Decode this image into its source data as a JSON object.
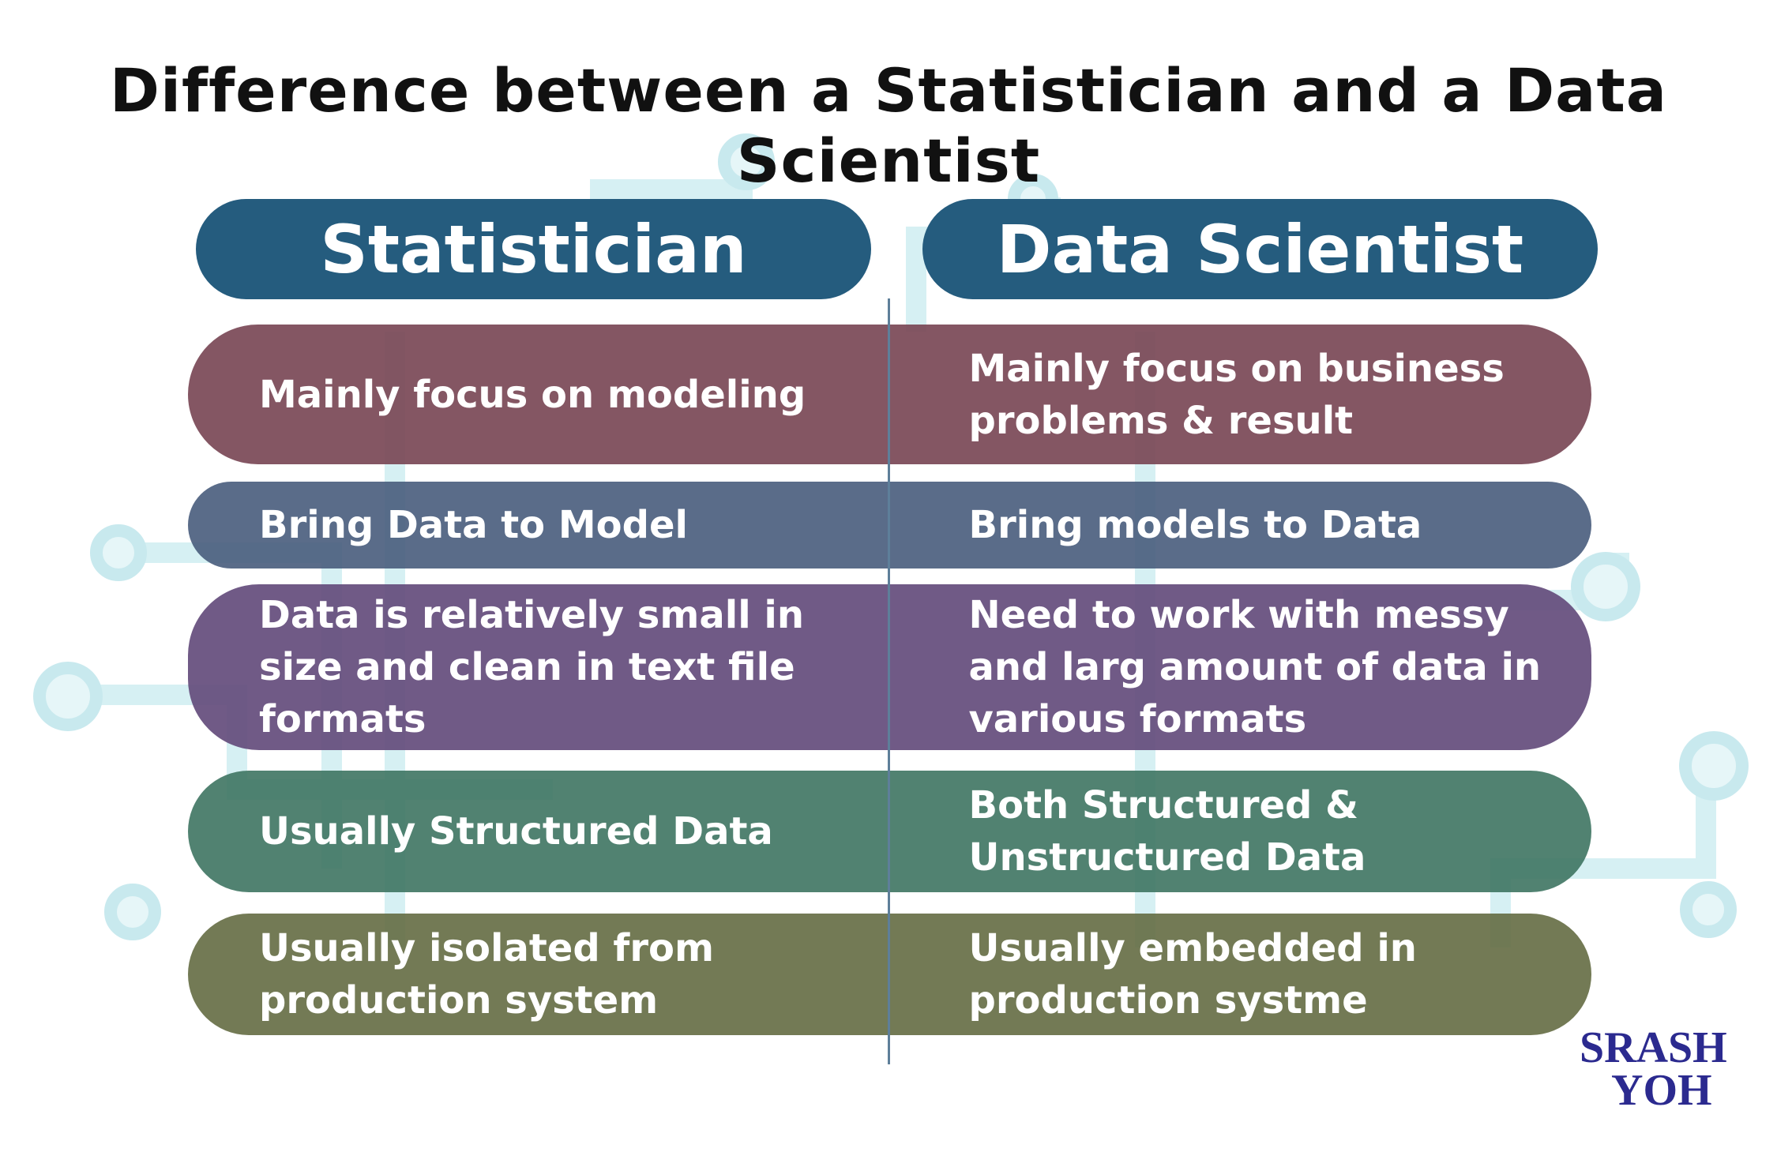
{
  "title": "Difference between a Statistician and a Data Scientist",
  "columns": [
    "Statistician",
    "Data Scientist"
  ],
  "rows": [
    [
      "Mainly focus on modeling",
      "Mainly focus on business problems & result"
    ],
    [
      "Bring Data to Model",
      "Bring models to Data"
    ],
    [
      "Data is relatively small in size and clean in text file formats",
      "Need to work with messy and larg amount of data in various formats"
    ],
    [
      "Usually Structured Data",
      "Both Structured & Unstructured Data"
    ],
    [
      "Usually isolated from production system",
      "Usually embedded in production systme"
    ]
  ],
  "logo": {
    "top": "SRASH",
    "bottom": "YOH"
  }
}
